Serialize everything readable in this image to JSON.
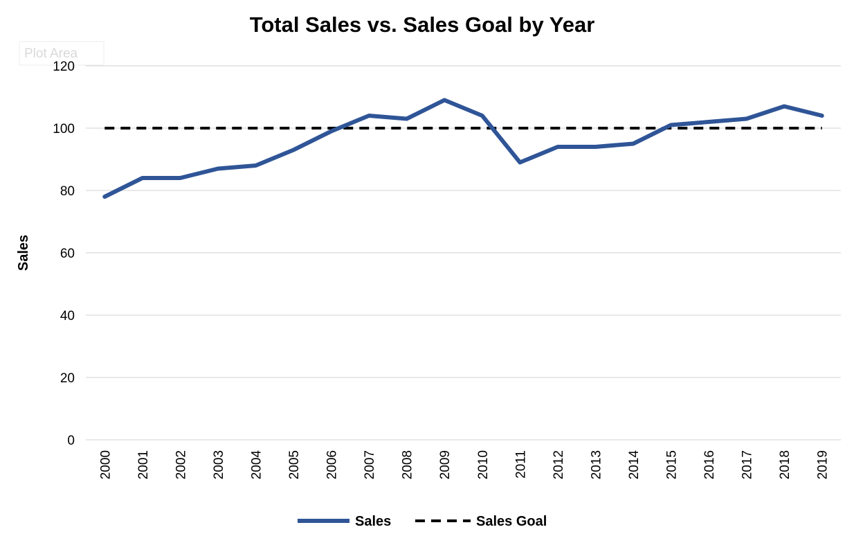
{
  "chart_data": {
    "type": "line",
    "title": "Total Sales vs. Sales Goal by Year",
    "xlabel": "",
    "ylabel": "Sales",
    "ylim": [
      0,
      120
    ],
    "yticks": [
      "0",
      "20",
      "40",
      "60",
      "80",
      "100",
      "120"
    ],
    "categories": [
      "2000",
      "2001",
      "2002",
      "2003",
      "2004",
      "2005",
      "2006",
      "2007",
      "2008",
      "2009",
      "2010",
      "2011",
      "2012",
      "2013",
      "2014",
      "2015",
      "2016",
      "2017",
      "2018",
      "2019"
    ],
    "series": [
      {
        "name": "Sales",
        "color": "#2f5597",
        "style": "solid",
        "values": [
          78,
          84,
          84,
          87,
          88,
          93,
          99,
          104,
          103,
          109,
          104,
          89,
          94,
          94,
          95,
          101,
          102,
          103,
          107,
          104
        ]
      },
      {
        "name": "Sales Goal",
        "color": "#000000",
        "style": "dashed",
        "values": [
          100,
          100,
          100,
          100,
          100,
          100,
          100,
          100,
          100,
          100,
          100,
          100,
          100,
          100,
          100,
          100,
          100,
          100,
          100,
          100
        ]
      }
    ],
    "grid": true,
    "legend_position": "bottom"
  },
  "tooltip": "Plot Area"
}
